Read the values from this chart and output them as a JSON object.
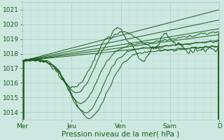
{
  "xlabel": "Pression niveau de la mer( hPa )",
  "ylim": [
    1013.5,
    1021.5
  ],
  "yticks": [
    1014,
    1015,
    1016,
    1017,
    1018,
    1019,
    1020,
    1021
  ],
  "xtick_labels": [
    "Mer",
    "Jeu",
    "Ven",
    "Sam",
    "D"
  ],
  "xtick_positions": [
    0.0,
    0.25,
    0.5,
    0.75,
    1.0
  ],
  "background_color": "#cce8e0",
  "grid_major_color": "#aacccc",
  "grid_minor_color": "#bbdddd",
  "line_color": "#1a5c1a",
  "label_color": "#1a5c1a"
}
